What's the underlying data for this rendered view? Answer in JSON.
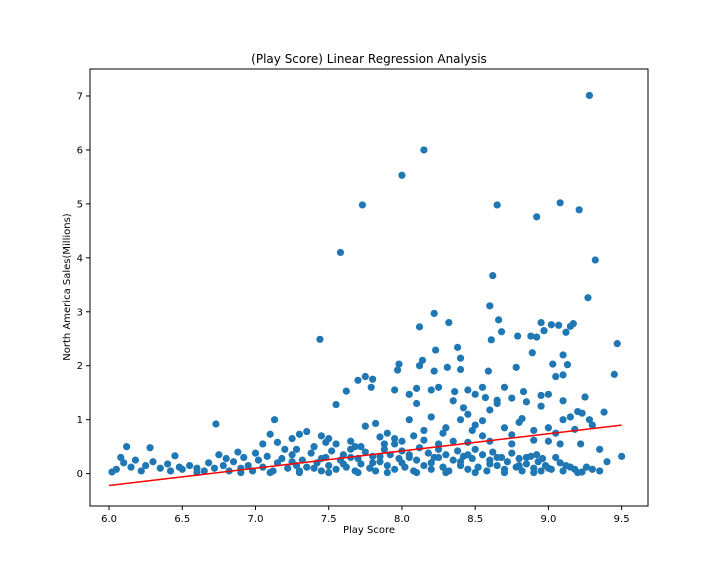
{
  "chart_data": {
    "type": "scatter",
    "title": "(Play Score) Linear Regression Analysis",
    "xlabel": "Play Score",
    "ylabel": "North America Sales(Millions)",
    "xlim": [
      5.87,
      9.68
    ],
    "ylim": [
      -0.6,
      7.5
    ],
    "xticks": [
      "6.0",
      "6.5",
      "7.0",
      "7.5",
      "8.0",
      "8.5",
      "9.0",
      "9.5"
    ],
    "yticks": [
      "0",
      "1",
      "2",
      "3",
      "4",
      "5",
      "6",
      "7"
    ],
    "grid": false,
    "point_color": "#1f77b4",
    "line_color": "#ff0000",
    "regression_line": {
      "x": [
        6.0,
        9.5
      ],
      "y": [
        -0.22,
        0.9
      ]
    },
    "points": [
      [
        9.28,
        7.01
      ],
      [
        8.15,
        6.0
      ],
      [
        8.0,
        5.53
      ],
      [
        9.08,
        5.02
      ],
      [
        7.73,
        4.98
      ],
      [
        8.65,
        4.98
      ],
      [
        9.21,
        4.89
      ],
      [
        8.92,
        4.76
      ],
      [
        7.58,
        4.1
      ],
      [
        9.32,
        3.96
      ],
      [
        8.62,
        3.67
      ],
      [
        9.27,
        3.26
      ],
      [
        8.6,
        3.11
      ],
      [
        8.22,
        2.97
      ],
      [
        8.66,
        2.85
      ],
      [
        8.95,
        2.8
      ],
      [
        8.32,
        2.8
      ],
      [
        9.07,
        2.75
      ],
      [
        9.17,
        2.78
      ],
      [
        9.15,
        2.73
      ],
      [
        8.12,
        2.72
      ],
      [
        8.68,
        2.63
      ],
      [
        9.12,
        2.62
      ],
      [
        8.97,
        2.65
      ],
      [
        9.02,
        2.76
      ],
      [
        8.88,
        2.55
      ],
      [
        8.92,
        2.53
      ],
      [
        8.79,
        2.55
      ],
      [
        7.44,
        2.49
      ],
      [
        8.61,
        2.48
      ],
      [
        9.47,
        2.41
      ],
      [
        8.38,
        2.34
      ],
      [
        8.23,
        2.29
      ],
      [
        8.89,
        2.24
      ],
      [
        9.1,
        2.2
      ],
      [
        8.4,
        2.14
      ],
      [
        8.14,
        2.1
      ],
      [
        9.03,
        2.03
      ],
      [
        7.98,
        2.03
      ],
      [
        9.13,
        2.02
      ],
      [
        8.12,
        2.0
      ],
      [
        8.78,
        1.97
      ],
      [
        8.31,
        1.97
      ],
      [
        7.7,
        1.73
      ],
      [
        7.75,
        1.8
      ],
      [
        7.8,
        1.75
      ],
      [
        8.22,
        1.9
      ],
      [
        8.4,
        1.93
      ],
      [
        7.97,
        1.92
      ],
      [
        8.59,
        1.9
      ],
      [
        9.05,
        1.8
      ],
      [
        9.1,
        1.83
      ],
      [
        9.45,
        1.84
      ],
      [
        7.62,
        1.53
      ],
      [
        7.79,
        1.6
      ],
      [
        7.95,
        1.55
      ],
      [
        8.05,
        1.47
      ],
      [
        8.1,
        1.58
      ],
      [
        8.2,
        1.55
      ],
      [
        8.25,
        1.6
      ],
      [
        8.36,
        1.52
      ],
      [
        8.45,
        1.55
      ],
      [
        8.5,
        1.47
      ],
      [
        8.55,
        1.6
      ],
      [
        8.7,
        1.6
      ],
      [
        8.83,
        1.52
      ],
      [
        8.57,
        1.41
      ],
      [
        8.65,
        1.36
      ],
      [
        8.75,
        1.4
      ],
      [
        8.95,
        1.45
      ],
      [
        9.0,
        1.47
      ],
      [
        9.25,
        1.42
      ],
      [
        8.1,
        1.3
      ],
      [
        8.35,
        1.35
      ],
      [
        8.65,
        1.3
      ],
      [
        9.1,
        1.35
      ],
      [
        7.55,
        1.28
      ],
      [
        8.42,
        1.22
      ],
      [
        8.85,
        1.33
      ],
      [
        8.45,
        1.1
      ],
      [
        8.6,
        1.18
      ],
      [
        8.95,
        1.25
      ],
      [
        9.2,
        1.15
      ],
      [
        9.23,
        1.12
      ],
      [
        9.15,
        1.05
      ],
      [
        9.1,
        1.0
      ],
      [
        9.28,
        1.0
      ],
      [
        9.38,
        1.14
      ],
      [
        7.13,
        1.0
      ],
      [
        7.3,
        0.73
      ],
      [
        6.73,
        0.92
      ],
      [
        7.1,
        0.73
      ],
      [
        7.25,
        0.65
      ],
      [
        7.35,
        0.78
      ],
      [
        7.45,
        0.7
      ],
      [
        7.5,
        0.65
      ],
      [
        7.85,
        0.68
      ],
      [
        7.9,
        0.75
      ],
      [
        8.15,
        0.8
      ],
      [
        8.3,
        0.85
      ],
      [
        8.5,
        0.9
      ],
      [
        8.7,
        0.85
      ],
      [
        8.8,
        0.95
      ],
      [
        8.9,
        0.8
      ],
      [
        9.05,
        0.75
      ],
      [
        9.3,
        0.9
      ],
      [
        7.75,
        0.88
      ],
      [
        7.82,
        0.93
      ],
      [
        8.05,
        1.0
      ],
      [
        8.2,
        1.05
      ],
      [
        8.4,
        1.0
      ],
      [
        8.55,
        0.98
      ],
      [
        8.82,
        1.02
      ],
      [
        9.0,
        0.85
      ],
      [
        9.18,
        0.82
      ],
      [
        6.12,
        0.5
      ],
      [
        6.28,
        0.48
      ],
      [
        6.45,
        0.33
      ],
      [
        6.75,
        0.35
      ],
      [
        6.88,
        0.4
      ],
      [
        7.0,
        0.38
      ],
      [
        7.05,
        0.55
      ],
      [
        7.15,
        0.58
      ],
      [
        7.2,
        0.45
      ],
      [
        7.4,
        0.5
      ],
      [
        7.55,
        0.55
      ],
      [
        7.65,
        0.6
      ],
      [
        7.72,
        0.5
      ],
      [
        7.95,
        0.55
      ],
      [
        8.0,
        0.6
      ],
      [
        8.25,
        0.55
      ],
      [
        8.45,
        0.58
      ],
      [
        8.6,
        0.6
      ],
      [
        8.75,
        0.55
      ],
      [
        8.9,
        0.62
      ],
      [
        9.0,
        0.6
      ],
      [
        9.08,
        0.55
      ],
      [
        9.22,
        0.55
      ],
      [
        9.35,
        0.45
      ],
      [
        9.4,
        0.22
      ],
      [
        9.5,
        0.32
      ],
      [
        9.35,
        0.05
      ],
      [
        9.23,
        0.03
      ],
      [
        9.1,
        0.05
      ],
      [
        9.0,
        0.1
      ],
      [
        8.85,
        0.3
      ],
      [
        8.92,
        0.35
      ],
      [
        8.96,
        0.28
      ],
      [
        9.05,
        0.3
      ],
      [
        9.15,
        0.12
      ],
      [
        6.02,
        0.03
      ],
      [
        6.05,
        0.08
      ],
      [
        6.08,
        0.3
      ],
      [
        6.1,
        0.2
      ],
      [
        6.15,
        0.12
      ],
      [
        6.18,
        0.25
      ],
      [
        6.22,
        0.05
      ],
      [
        6.25,
        0.15
      ],
      [
        6.3,
        0.22
      ],
      [
        6.35,
        0.1
      ],
      [
        6.4,
        0.18
      ],
      [
        6.42,
        0.05
      ],
      [
        6.48,
        0.12
      ],
      [
        6.5,
        0.08
      ],
      [
        6.55,
        0.15
      ],
      [
        6.6,
        0.1
      ],
      [
        6.65,
        0.05
      ],
      [
        6.68,
        0.2
      ],
      [
        6.72,
        0.1
      ],
      [
        6.78,
        0.15
      ],
      [
        6.8,
        0.28
      ],
      [
        6.82,
        0.05
      ],
      [
        6.85,
        0.22
      ],
      [
        6.9,
        0.1
      ],
      [
        6.92,
        0.3
      ],
      [
        6.95,
        0.15
      ],
      [
        6.98,
        0.05
      ],
      [
        7.02,
        0.25
      ],
      [
        7.05,
        0.12
      ],
      [
        7.08,
        0.32
      ],
      [
        7.12,
        0.05
      ],
      [
        7.15,
        0.2
      ],
      [
        7.18,
        0.28
      ],
      [
        7.22,
        0.1
      ],
      [
        7.25,
        0.35
      ],
      [
        7.28,
        0.15
      ],
      [
        7.3,
        0.05
      ],
      [
        7.32,
        0.25
      ],
      [
        7.35,
        0.12
      ],
      [
        7.38,
        0.38
      ],
      [
        7.42,
        0.2
      ],
      [
        7.45,
        0.05
      ],
      [
        7.48,
        0.3
      ],
      [
        7.5,
        0.15
      ],
      [
        7.52,
        0.42
      ],
      [
        7.55,
        0.08
      ],
      [
        7.58,
        0.25
      ],
      [
        7.6,
        0.35
      ],
      [
        7.62,
        0.12
      ],
      [
        7.65,
        0.45
      ],
      [
        7.68,
        0.05
      ],
      [
        7.7,
        0.28
      ],
      [
        7.72,
        0.18
      ],
      [
        7.75,
        0.4
      ],
      [
        7.78,
        0.1
      ],
      [
        7.8,
        0.32
      ],
      [
        7.82,
        0.05
      ],
      [
        7.85,
        0.22
      ],
      [
        7.88,
        0.45
      ],
      [
        7.9,
        0.15
      ],
      [
        7.92,
        0.35
      ],
      [
        7.95,
        0.08
      ],
      [
        7.98,
        0.28
      ],
      [
        8.0,
        0.42
      ],
      [
        8.02,
        0.12
      ],
      [
        8.05,
        0.35
      ],
      [
        8.08,
        0.05
      ],
      [
        8.1,
        0.25
      ],
      [
        8.12,
        0.48
      ],
      [
        8.15,
        0.15
      ],
      [
        8.18,
        0.38
      ],
      [
        8.2,
        0.08
      ],
      [
        8.22,
        0.3
      ],
      [
        8.25,
        0.45
      ],
      [
        8.28,
        0.12
      ],
      [
        8.3,
        0.35
      ],
      [
        8.32,
        0.05
      ],
      [
        8.35,
        0.25
      ],
      [
        8.38,
        0.42
      ],
      [
        8.4,
        0.15
      ],
      [
        8.42,
        0.32
      ],
      [
        8.45,
        0.08
      ],
      [
        8.48,
        0.28
      ],
      [
        8.5,
        0.45
      ],
      [
        8.52,
        0.12
      ],
      [
        8.55,
        0.35
      ],
      [
        8.58,
        0.05
      ],
      [
        8.6,
        0.25
      ],
      [
        8.62,
        0.4
      ],
      [
        8.65,
        0.15
      ],
      [
        8.68,
        0.3
      ],
      [
        8.7,
        0.08
      ],
      [
        8.72,
        0.22
      ],
      [
        8.75,
        0.38
      ],
      [
        8.78,
        0.12
      ],
      [
        8.8,
        0.28
      ],
      [
        8.82,
        0.05
      ],
      [
        8.85,
        0.18
      ],
      [
        8.88,
        0.32
      ],
      [
        8.9,
        0.1
      ],
      [
        8.93,
        0.22
      ],
      [
        8.95,
        0.05
      ],
      [
        8.98,
        0.15
      ],
      [
        9.02,
        0.08
      ],
      [
        9.08,
        0.2
      ],
      [
        9.12,
        0.15
      ],
      [
        9.18,
        0.08
      ],
      [
        9.2,
        0.02
      ],
      [
        9.26,
        0.12
      ],
      [
        9.3,
        0.08
      ],
      [
        6.6,
        0.02
      ],
      [
        6.9,
        0.02
      ],
      [
        7.1,
        0.02
      ],
      [
        7.3,
        0.02
      ],
      [
        7.5,
        0.02
      ],
      [
        7.7,
        0.02
      ],
      [
        7.9,
        0.02
      ],
      [
        8.1,
        0.02
      ],
      [
        8.3,
        0.02
      ],
      [
        8.5,
        0.02
      ],
      [
        8.7,
        0.02
      ],
      [
        8.9,
        0.02
      ],
      [
        7.4,
        0.1
      ],
      [
        7.6,
        0.18
      ],
      [
        7.8,
        0.2
      ],
      [
        8.0,
        0.2
      ],
      [
        8.2,
        0.2
      ],
      [
        8.4,
        0.22
      ],
      [
        8.6,
        0.18
      ],
      [
        8.8,
        0.15
      ],
      [
        7.25,
        0.22
      ],
      [
        7.45,
        0.28
      ],
      [
        7.65,
        0.3
      ],
      [
        7.85,
        0.32
      ],
      [
        8.05,
        0.3
      ],
      [
        8.25,
        0.3
      ],
      [
        8.45,
        0.35
      ],
      [
        8.65,
        0.3
      ],
      [
        7.95,
        0.65
      ],
      [
        8.15,
        0.62
      ],
      [
        8.35,
        0.6
      ],
      [
        8.55,
        0.7
      ],
      [
        8.75,
        0.72
      ],
      [
        8.28,
        0.75
      ],
      [
        8.48,
        0.8
      ],
      [
        8.08,
        0.7
      ],
      [
        7.88,
        0.55
      ],
      [
        7.68,
        0.5
      ],
      [
        7.48,
        0.58
      ],
      [
        7.28,
        0.45
      ]
    ]
  }
}
